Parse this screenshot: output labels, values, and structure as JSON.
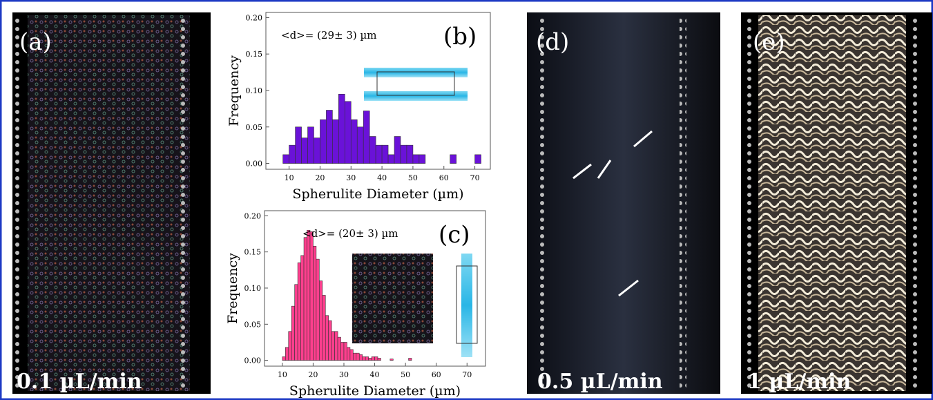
{
  "panels": [
    {
      "label": "(a)",
      "caption": "0.1 µL/min"
    },
    {
      "label": "(d)",
      "caption": "0.5 µL/min"
    },
    {
      "label": "(e)",
      "caption": "1 µL/min"
    }
  ],
  "chart_data": [
    {
      "type": "histogram",
      "panel_label": "(b)",
      "annotation": "<d>= (29± 3) µm",
      "x_label": "Spherulite Diameter (µm)",
      "y_label": "Frequency",
      "color": "#6a12d8",
      "bins": [
        8,
        10,
        12,
        14,
        16,
        18,
        20,
        22,
        24,
        26,
        28,
        30,
        32,
        34,
        36,
        38,
        40,
        42,
        44,
        46,
        48,
        50,
        52,
        54,
        56,
        58,
        60,
        62,
        64,
        66,
        68,
        70,
        72
      ],
      "values": [
        0.012,
        0.025,
        0.05,
        0.035,
        0.05,
        0.035,
        0.06,
        0.073,
        0.06,
        0.095,
        0.085,
        0.06,
        0.05,
        0.072,
        0.037,
        0.025,
        0.025,
        0.012,
        0.037,
        0.025,
        0.025,
        0.012,
        0.012,
        0,
        0,
        0,
        0,
        0.012,
        0,
        0,
        0,
        0.012
      ],
      "xlim": [
        2.5,
        75
      ],
      "ylim": [
        -0.008,
        0.207
      ],
      "xticks": [
        10,
        20,
        30,
        40,
        50,
        60,
        70
      ],
      "yticks": [
        {
          "value": 0,
          "label": "0.00"
        },
        {
          "value": 0.05,
          "label": "0.05"
        },
        {
          "value": 0.1,
          "label": "0.10"
        },
        {
          "value": 0.15,
          "label": "0.15"
        },
        {
          "value": 0.2,
          "label": "0.20"
        }
      ]
    },
    {
      "type": "histogram",
      "panel_label": "(c)",
      "annotation": "<d>= (20± 3) µm",
      "x_label": "Spherulite Diameter (µm)",
      "y_label": "Frequency",
      "color": "#ff3f8e",
      "bins": [
        10,
        11,
        12,
        13,
        14,
        15,
        16,
        17,
        18,
        19,
        20,
        21,
        22,
        23,
        24,
        25,
        26,
        27,
        28,
        29,
        30,
        31,
        32,
        33,
        34,
        35,
        36,
        37,
        38,
        39,
        40,
        41,
        42,
        43,
        44,
        45,
        46,
        47,
        48,
        49,
        50,
        51,
        52
      ],
      "values": [
        0.005,
        0.018,
        0.04,
        0.075,
        0.105,
        0.135,
        0.145,
        0.17,
        0.18,
        0.178,
        0.158,
        0.14,
        0.11,
        0.09,
        0.062,
        0.055,
        0.04,
        0.04,
        0.032,
        0.025,
        0.025,
        0.018,
        0.015,
        0.01,
        0.01,
        0.008,
        0.005,
        0.005,
        0.003,
        0.005,
        0.005,
        0.003,
        0,
        0,
        0,
        0.002,
        0,
        0,
        0,
        0,
        0,
        0.003
      ],
      "xlim": [
        4.2,
        76
      ],
      "ylim": [
        -0.008,
        0.207
      ],
      "xticks": [
        10,
        20,
        30,
        40,
        50,
        60,
        70
      ],
      "yticks": [
        {
          "value": 0,
          "label": "0.00"
        },
        {
          "value": 0.05,
          "label": "0.05"
        },
        {
          "value": 0.1,
          "label": "0.10"
        },
        {
          "value": 0.15,
          "label": "0.15"
        },
        {
          "value": 0.2,
          "label": "0.20"
        }
      ]
    }
  ]
}
